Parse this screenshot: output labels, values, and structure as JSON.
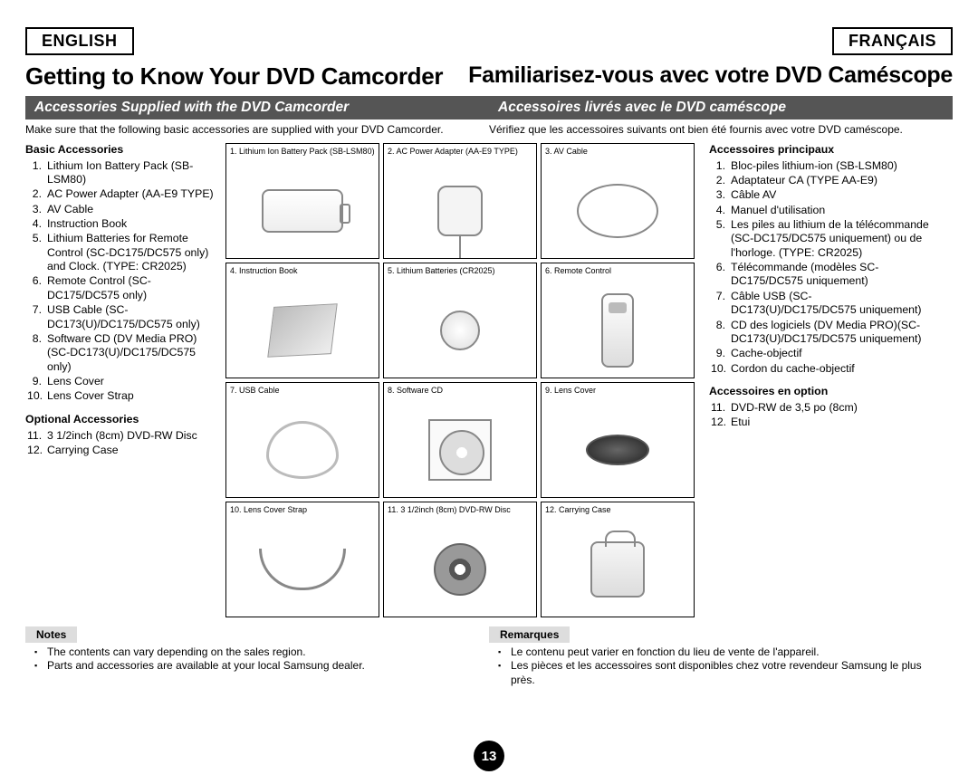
{
  "lang": {
    "en": "ENGLISH",
    "fr": "FRANÇAIS"
  },
  "title": {
    "en": "Getting to Know Your DVD Camcorder",
    "fr": "Familiarisez-vous avec votre DVD Caméscope"
  },
  "subhead": {
    "en": "Accessories Supplied with the DVD Camcorder",
    "fr": "Accessoires livrés avec le DVD caméscope"
  },
  "intro": {
    "en": "Make sure that the following basic accessories are supplied with your DVD Camcorder.",
    "fr": "Vérifiez que les accessoires suivants ont bien été fournis avec votre DVD caméscope."
  },
  "en": {
    "basic_head": "Basic Accessories",
    "opt_head": "Optional Accessories",
    "items": [
      "Lithium Ion Battery Pack (SB-LSM80)",
      "AC Power Adapter (AA-E9 TYPE)",
      "AV Cable",
      "Instruction Book",
      "Lithium Batteries for Remote Control (SC-DC175/DC575 only) and Clock. (TYPE: CR2025)",
      "Remote Control (SC-DC175/DC575 only)",
      "USB Cable (SC-DC173(U)/DC175/DC575 only)",
      "Software CD (DV Media PRO) (SC-DC173(U)/DC175/DC575 only)",
      "Lens Cover",
      "Lens Cover Strap"
    ],
    "optional": [
      "3 1/2inch (8cm) DVD-RW Disc",
      "Carrying Case"
    ]
  },
  "fr": {
    "basic_head": "Accessoires principaux",
    "opt_head": "Accessoires en option",
    "items": [
      "Bloc-piles lithium-ion (SB-LSM80)",
      "Adaptateur CA (TYPE AA-E9)",
      "Câble AV",
      "Manuel d'utilisation",
      "Les piles au lithium de la télécommande (SC-DC175/DC575 uniquement) ou de l'horloge. (TYPE: CR2025)",
      "Télécommande (modèles SC-DC175/DC575 uniquement)",
      "Câble USB (SC-DC173(U)/DC175/DC575 uniquement)",
      "CD des logiciels (DV Media PRO)(SC-DC173(U)/DC175/DC575 uniquement)",
      "Cache-objectif",
      "Cordon du cache-objectif"
    ],
    "optional": [
      "DVD-RW de 3,5 po (8cm)",
      "Etui"
    ]
  },
  "cells": [
    {
      "n": "1",
      "label": "Lithium Ion Battery Pack (SB-LSM80)",
      "glyph": "g-battery"
    },
    {
      "n": "2",
      "label": "AC Power Adapter (AA-E9 TYPE)",
      "glyph": "g-adapter"
    },
    {
      "n": "3",
      "label": "AV Cable",
      "glyph": "g-avcable"
    },
    {
      "n": "4",
      "label": "Instruction Book",
      "glyph": "g-book"
    },
    {
      "n": "5",
      "label": "Lithium Batteries (CR2025)",
      "glyph": "g-coin"
    },
    {
      "n": "6",
      "label": "Remote Control",
      "glyph": "g-remote"
    },
    {
      "n": "7",
      "label": "USB Cable",
      "glyph": "g-usb"
    },
    {
      "n": "8",
      "label": "Software CD",
      "glyph": "g-cd"
    },
    {
      "n": "9",
      "label": "Lens Cover",
      "glyph": "g-lens"
    },
    {
      "n": "10",
      "label": "Lens Cover Strap",
      "glyph": "g-strap"
    },
    {
      "n": "11",
      "label": "3 1/2inch (8cm) DVD-RW Disc",
      "glyph": "g-disc"
    },
    {
      "n": "12",
      "label": "Carrying Case",
      "glyph": "g-case"
    }
  ],
  "notes": {
    "en_label": "Notes",
    "fr_label": "Remarques",
    "en": [
      "The contents can vary depending on the sales region.",
      "Parts and accessories are available at your local Samsung dealer."
    ],
    "fr": [
      "Le contenu peut varier en fonction du lieu de vente de l'appareil.",
      "Les pièces et les accessoires sont disponibles chez votre revendeur Samsung le plus près."
    ]
  },
  "page": "13"
}
